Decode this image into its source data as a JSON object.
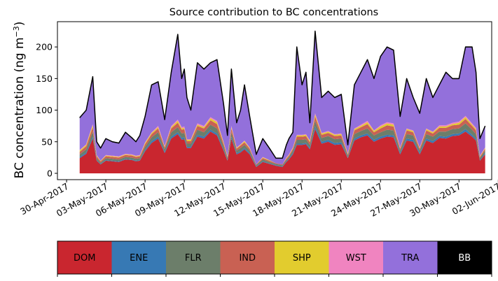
{
  "chart_data": {
    "type": "area",
    "stacked": true,
    "title": "Source contribution to BC concentrations",
    "ylabel_main": "BC concentration (ng m",
    "ylabel_sup": "−3",
    "ylabel_close": ")",
    "xlabel": "",
    "ylim": [
      -10,
      240
    ],
    "xlim_days": [
      -0.7,
      32.5
    ],
    "yticks": [
      0,
      50,
      100,
      150,
      200
    ],
    "x_ticks": [
      {
        "label": "30-Apr-2017",
        "day": 0
      },
      {
        "label": "03-May-2017",
        "day": 3
      },
      {
        "label": "06-May-2017",
        "day": 6
      },
      {
        "label": "09-May-2017",
        "day": 9
      },
      {
        "label": "12-May-2017",
        "day": 12
      },
      {
        "label": "15-May-2017",
        "day": 15
      },
      {
        "label": "18-May-2017",
        "day": 18
      },
      {
        "label": "21-May-2017",
        "day": 21
      },
      {
        "label": "24-May-2017",
        "day": 24
      },
      {
        "label": "27-May-2017",
        "day": 27
      },
      {
        "label": "30-May-2017",
        "day": 30
      },
      {
        "label": "02-Jun-2017",
        "day": 33
      }
    ],
    "x_day0": "30-Apr-2017",
    "x": [
      1.0,
      1.5,
      2.0,
      2.3,
      2.6,
      3.0,
      3.5,
      4.0,
      4.5,
      5.0,
      5.3,
      5.6,
      6.0,
      6.5,
      7.0,
      7.5,
      8.0,
      8.5,
      8.8,
      9.0,
      9.2,
      9.5,
      10.0,
      10.5,
      11.0,
      11.5,
      12.0,
      12.3,
      12.6,
      13.0,
      13.3,
      13.6,
      14.0,
      14.5,
      15.0,
      15.5,
      16.0,
      16.5,
      16.8,
      17.0,
      17.3,
      17.6,
      18.0,
      18.3,
      18.6,
      19.0,
      19.5,
      20.0,
      20.5,
      21.0,
      21.5,
      22.0,
      22.5,
      23.0,
      23.5,
      24.0,
      24.5,
      25.0,
      25.5,
      26.0,
      26.5,
      27.0,
      27.5,
      28.0,
      28.5,
      29.0,
      29.5,
      30.0,
      30.5,
      31.0,
      31.3,
      31.6,
      32.0
    ],
    "total": [
      88,
      100,
      153,
      50,
      40,
      55,
      50,
      48,
      65,
      56,
      50,
      60,
      90,
      140,
      145,
      85,
      160,
      220,
      150,
      165,
      120,
      100,
      175,
      165,
      175,
      180,
      110,
      60,
      165,
      80,
      100,
      140,
      90,
      30,
      55,
      40,
      24,
      24,
      45,
      55,
      65,
      200,
      140,
      160,
      80,
      225,
      120,
      130,
      120,
      125,
      45,
      140,
      160,
      180,
      150,
      185,
      200,
      195,
      90,
      150,
      120,
      95,
      150,
      120,
      140,
      160,
      150,
      150,
      200,
      200,
      160,
      55,
      75
    ],
    "series": [
      {
        "name": "DOM",
        "color": "#c9262f",
        "values": [
          24,
          31,
          55,
          20,
          14,
          20,
          19,
          18,
          22,
          21,
          19,
          20,
          35,
          48,
          55,
          32,
          55,
          62,
          53,
          54,
          40,
          40,
          58,
          55,
          66,
          60,
          36,
          20,
          55,
          30,
          33,
          38,
          30,
          10,
          18,
          15,
          12,
          10,
          18,
          22,
          30,
          45,
          45,
          46,
          38,
          70,
          47,
          50,
          45,
          46,
          24,
          52,
          57,
          60,
          50,
          55,
          58,
          57,
          30,
          52,
          50,
          30,
          52,
          48,
          56,
          55,
          59,
          60,
          66,
          58,
          52,
          20,
          30
        ]
      },
      {
        "name": "ENE",
        "color": "#3779b4",
        "values": [
          2,
          2,
          3,
          1,
          1,
          1,
          1,
          1,
          1,
          1,
          1,
          1,
          2,
          3,
          3,
          2,
          3,
          3,
          3,
          3,
          2,
          2,
          3,
          3,
          3,
          3,
          2,
          1,
          3,
          2,
          2,
          2,
          2,
          1,
          1,
          1,
          1,
          1,
          1,
          1,
          2,
          2,
          2,
          2,
          2,
          4,
          3,
          3,
          3,
          3,
          1,
          3,
          3,
          3,
          3,
          3,
          3,
          3,
          2,
          3,
          3,
          2,
          3,
          3,
          3,
          3,
          3,
          3,
          4,
          3,
          3,
          1,
          2
        ]
      },
      {
        "name": "FLR",
        "color": "#6c7e6a",
        "values": [
          4,
          5,
          8,
          3,
          2,
          3,
          3,
          3,
          3,
          3,
          3,
          3,
          5,
          6,
          7,
          4,
          7,
          8,
          7,
          7,
          5,
          5,
          8,
          7,
          8,
          8,
          5,
          3,
          7,
          4,
          5,
          5,
          4,
          2,
          3,
          2,
          2,
          2,
          2,
          3,
          4,
          6,
          6,
          6,
          5,
          9,
          6,
          6,
          6,
          6,
          3,
          7,
          7,
          8,
          7,
          7,
          8,
          8,
          4,
          7,
          7,
          4,
          7,
          7,
          7,
          8,
          8,
          8,
          9,
          8,
          7,
          3,
          4
        ]
      },
      {
        "name": "IND",
        "color": "#c96153",
        "values": [
          4,
          5,
          7,
          3,
          2,
          3,
          3,
          3,
          3,
          3,
          3,
          3,
          4,
          5,
          6,
          3,
          6,
          7,
          6,
          6,
          4,
          4,
          6,
          6,
          7,
          7,
          4,
          2,
          6,
          3,
          4,
          4,
          3,
          1,
          2,
          2,
          1,
          1,
          2,
          2,
          3,
          5,
          5,
          5,
          4,
          7,
          5,
          5,
          5,
          5,
          2,
          6,
          6,
          7,
          5,
          6,
          7,
          6,
          3,
          6,
          5,
          3,
          6,
          5,
          6,
          6,
          6,
          6,
          7,
          6,
          6,
          2,
          3
        ]
      },
      {
        "name": "SHP",
        "color": "#e2cc2e",
        "values": [
          2,
          2,
          3,
          1,
          1,
          1,
          1,
          1,
          1,
          1,
          1,
          1,
          2,
          2,
          2,
          1,
          2,
          3,
          2,
          2,
          2,
          2,
          2,
          2,
          3,
          3,
          2,
          1,
          2,
          1,
          1,
          2,
          1,
          0,
          1,
          1,
          0,
          0,
          1,
          1,
          1,
          2,
          2,
          2,
          2,
          3,
          2,
          2,
          2,
          2,
          1,
          2,
          2,
          3,
          2,
          3,
          3,
          3,
          1,
          2,
          2,
          1,
          2,
          2,
          2,
          2,
          2,
          3,
          3,
          2,
          2,
          1,
          1
        ]
      },
      {
        "name": "WST",
        "color": "#f084c0",
        "values": [
          1,
          1,
          2,
          1,
          0,
          1,
          1,
          1,
          1,
          1,
          1,
          1,
          1,
          1,
          2,
          1,
          2,
          2,
          2,
          2,
          1,
          1,
          2,
          2,
          2,
          2,
          1,
          1,
          2,
          1,
          1,
          1,
          1,
          0,
          1,
          0,
          0,
          0,
          1,
          1,
          1,
          1,
          1,
          1,
          1,
          2,
          1,
          1,
          1,
          1,
          1,
          1,
          2,
          2,
          1,
          2,
          2,
          2,
          1,
          1,
          1,
          1,
          1,
          1,
          2,
          2,
          2,
          2,
          2,
          2,
          2,
          1,
          1
        ]
      },
      {
        "name": "TRA",
        "color": "#9370db",
        "values": [
          50,
          53,
          74,
          20,
          19,
          25,
          21,
          20,
          33,
          26,
          21,
          30,
          40,
          74,
          69,
          41,
          84,
          134,
          76,
          90,
          65,
          45,
          95,
          89,
          85,
          96,
          59,
          31,
          89,
          38,
          53,
          87,
          48,
          16,
          28,
          19,
          8,
          10,
          20,
          24,
          23,
          138,
          78,
          97,
          27,
          129,
          55,
          62,
          57,
          61,
          12,
          68,
          82,
          96,
          81,
          108,
          118,
          115,
          48,
          78,
          51,
          53,
          78,
          53,
          63,
          83,
          69,
          67,
          108,
          120,
          87,
          26,
          33
        ]
      },
      {
        "name": "BB",
        "color": "#000000",
        "values": [
          1,
          1,
          1,
          1,
          1,
          1,
          1,
          1,
          1,
          1,
          1,
          1,
          1,
          1,
          1,
          1,
          1,
          1,
          1,
          1,
          1,
          1,
          1,
          1,
          1,
          1,
          1,
          1,
          1,
          1,
          1,
          1,
          1,
          0,
          1,
          0,
          0,
          0,
          0,
          1,
          1,
          1,
          1,
          1,
          1,
          1,
          1,
          1,
          1,
          1,
          1,
          1,
          1,
          1,
          1,
          1,
          1,
          1,
          1,
          1,
          1,
          1,
          1,
          1,
          1,
          1,
          1,
          1,
          1,
          1,
          1,
          1,
          1
        ]
      }
    ],
    "legend": [
      {
        "label": "DOM",
        "color": "#c9262f",
        "text_color": "#000000"
      },
      {
        "label": "ENE",
        "color": "#3779b4",
        "text_color": "#000000"
      },
      {
        "label": "FLR",
        "color": "#6c7e6a",
        "text_color": "#000000"
      },
      {
        "label": "IND",
        "color": "#c96153",
        "text_color": "#000000"
      },
      {
        "label": "SHP",
        "color": "#e2cc2e",
        "text_color": "#000000"
      },
      {
        "label": "WST",
        "color": "#f084c0",
        "text_color": "#000000"
      },
      {
        "label": "TRA",
        "color": "#9370db",
        "text_color": "#000000"
      },
      {
        "label": "BB",
        "color": "#000000",
        "text_color": "#ffffff"
      }
    ],
    "legend_placement": "bottom",
    "total_line_color": "#000000",
    "grid": false
  }
}
